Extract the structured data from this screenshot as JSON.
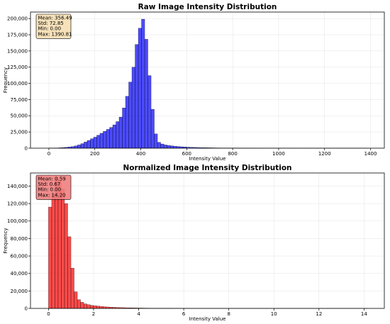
{
  "chart_data": [
    {
      "type": "bar",
      "title": "Raw Image Intensity Distribution",
      "xlabel": "Intensity Value",
      "ylabel": "Frequency",
      "xlim": [
        -80,
        1460
      ],
      "ylim": [
        0,
        210000
      ],
      "xticks": [
        0,
        200,
        400,
        600,
        800,
        1000,
        1200,
        1400
      ],
      "xtick_labels": [
        "0",
        "200",
        "400",
        "600",
        "800",
        "1000",
        "1200",
        "1400"
      ],
      "yticks": [
        0,
        25000,
        50000,
        75000,
        100000,
        125000,
        150000,
        175000,
        200000
      ],
      "ytick_labels": [
        "0",
        "25,000",
        "50,000",
        "75,000",
        "100,000",
        "125,000",
        "150,000",
        "175,000",
        "200,000"
      ],
      "bin_width": 13.9,
      "bin_start": 0,
      "color": "#0000ff",
      "grid": true,
      "stats_box": {
        "lines": [
          "Mean: 356.49",
          "Std: 72.85",
          "Min: 0.00",
          "Max: 1390.81"
        ],
        "fill": "#f5deb3"
      },
      "values": [
        200,
        300,
        400,
        600,
        900,
        1300,
        1800,
        2500,
        3500,
        5000,
        7000,
        9500,
        12000,
        14500,
        17000,
        20000,
        23000,
        26000,
        29000,
        32000,
        36000,
        41000,
        48000,
        62000,
        80000,
        102000,
        125000,
        160000,
        185000,
        199000,
        168000,
        112000,
        60000,
        22000,
        9000,
        6500,
        5000,
        4200,
        3600,
        3000,
        2600,
        2200,
        1900,
        1600,
        1400,
        1200,
        1050,
        900,
        800,
        700,
        620,
        550,
        480,
        420,
        370,
        320,
        280,
        240,
        210,
        180,
        150,
        130,
        110,
        95,
        80,
        70,
        60,
        50,
        40,
        35,
        30,
        25,
        20,
        18,
        15,
        12,
        10,
        8,
        6,
        5,
        4,
        3,
        3,
        2,
        2,
        2,
        1,
        1,
        1,
        1,
        1,
        1,
        1,
        1,
        1,
        1,
        1,
        1,
        1,
        1
      ]
    },
    {
      "type": "bar",
      "title": "Normalized Image Intensity Distribution",
      "xlabel": "Intensity Value",
      "ylabel": "Frequency",
      "xlim": [
        -0.8,
        14.9
      ],
      "ylim": [
        0,
        155000
      ],
      "xticks": [
        0,
        2,
        4,
        6,
        8,
        10,
        12,
        14
      ],
      "xtick_labels": [
        "0",
        "2",
        "4",
        "6",
        "8",
        "10",
        "12",
        "14"
      ],
      "yticks": [
        0,
        20000,
        40000,
        60000,
        80000,
        100000,
        120000,
        140000
      ],
      "ytick_labels": [
        "0",
        "20,000",
        "40,000",
        "60,000",
        "80,000",
        "100,000",
        "120,000",
        "140,000"
      ],
      "bin_width": 0.142,
      "bin_start": 0,
      "color": "#ff0000",
      "grid": true,
      "stats_box": {
        "lines": [
          "Mean: 0.59",
          "Std: 0.67",
          "Min: 0.00",
          "Max: 14.20"
        ],
        "fill": "#f08080"
      },
      "values": [
        116000,
        131000,
        150000,
        147000,
        137000,
        120000,
        82000,
        46000,
        19000,
        10000,
        7000,
        5200,
        4200,
        3500,
        3000,
        2600,
        2200,
        1900,
        1650,
        1450,
        1250,
        1100,
        960,
        840,
        740,
        650,
        570,
        500,
        440,
        390,
        340,
        300,
        265,
        235,
        205,
        180,
        160,
        140,
        125,
        110,
        95,
        85,
        75,
        65,
        55,
        48,
        42,
        37,
        32,
        28,
        24,
        21,
        18,
        16,
        14,
        12,
        10,
        9,
        8,
        7,
        6,
        5,
        5,
        4,
        4,
        3,
        3,
        3,
        2,
        2,
        2,
        2,
        2,
        1,
        1,
        1,
        1,
        1,
        1,
        1,
        1,
        1,
        1,
        1,
        1,
        1,
        1,
        1,
        1,
        1,
        1,
        1,
        1,
        1,
        1,
        1,
        1,
        1,
        1,
        1
      ]
    }
  ]
}
